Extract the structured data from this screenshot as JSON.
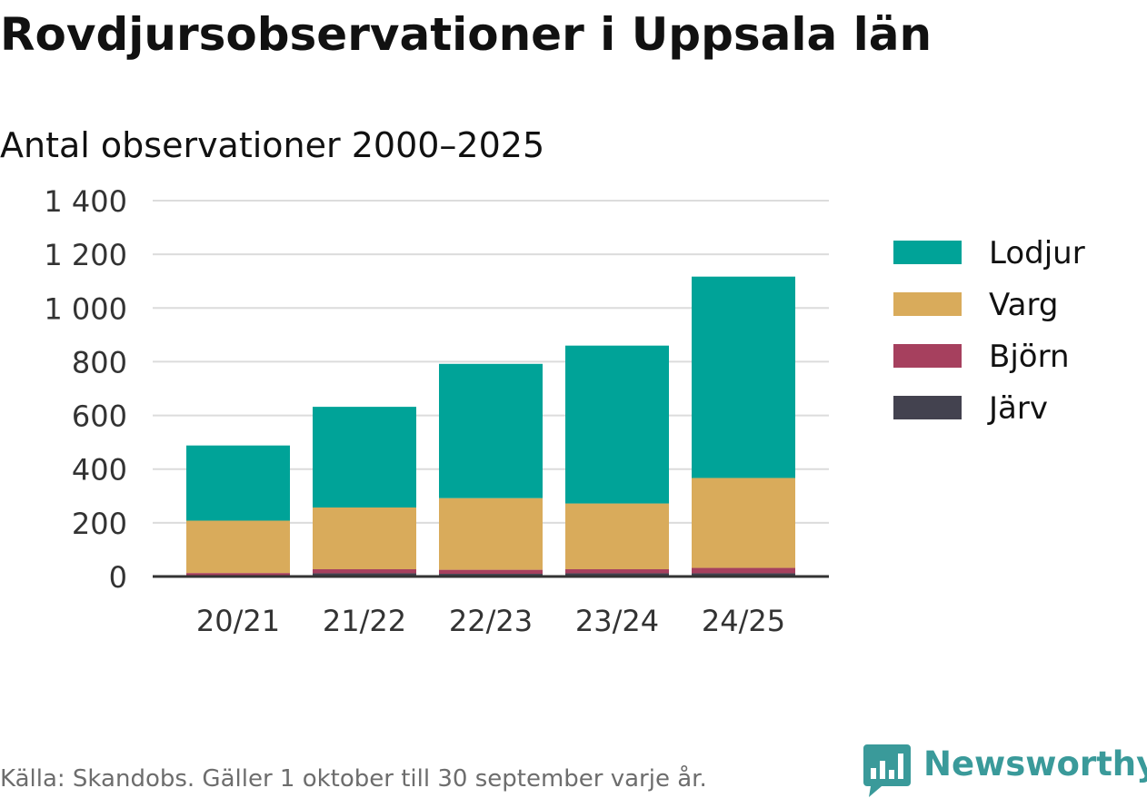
{
  "header": {
    "title": "Rovdjursobservationer i Uppsala län",
    "subtitle": "Antal observationer 2000–2025"
  },
  "footer": {
    "source": "Källa: Skandobs. Gäller 1 oktober till 30 september varje år.",
    "brand": "Newsworthy",
    "brand_color": "#3a9a9a"
  },
  "chart_data": {
    "type": "bar",
    "stacked": true,
    "title": "Rovdjursobservationer i Uppsala län",
    "subtitle": "Antal observationer 2000–2025",
    "xlabel": "",
    "ylabel": "",
    "categories": [
      "20/21",
      "21/22",
      "22/23",
      "23/24",
      "24/25"
    ],
    "ylim": [
      0,
      1400
    ],
    "yticks": [
      0,
      200,
      400,
      600,
      800,
      1000,
      1200,
      1400
    ],
    "ytick_labels": [
      "0",
      "200",
      "400",
      "600",
      "800",
      "1 000",
      "1 200",
      "1 400"
    ],
    "grid": true,
    "legend_position": "right",
    "series": [
      {
        "name": "Järv",
        "color": "#43424f",
        "values": [
          5,
          12,
          10,
          12,
          12
        ]
      },
      {
        "name": "Björn",
        "color": "#a6405e",
        "values": [
          8,
          15,
          15,
          15,
          20
        ]
      },
      {
        "name": "Varg",
        "color": "#d9ab5b",
        "values": [
          195,
          230,
          267,
          245,
          335
        ]
      },
      {
        "name": "Lodjur",
        "color": "#00a398",
        "values": [
          280,
          375,
          500,
          588,
          750
        ]
      }
    ]
  }
}
